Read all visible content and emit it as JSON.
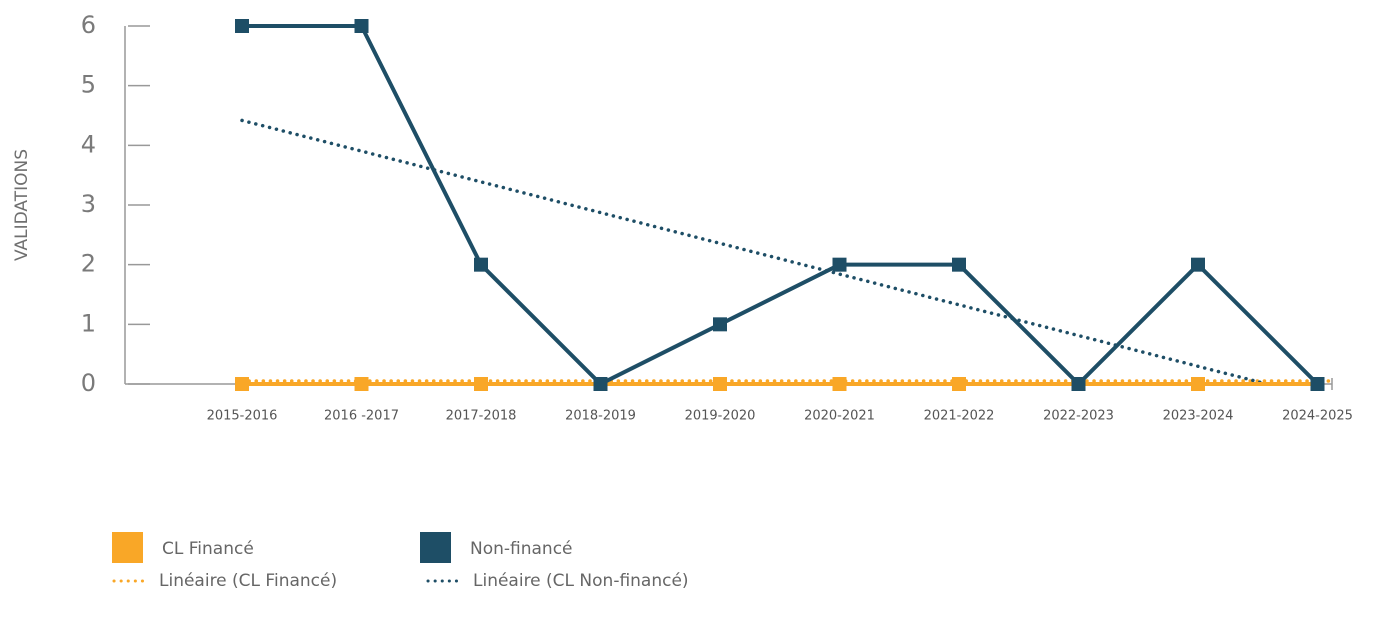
{
  "chart_data": {
    "type": "line",
    "y_label": "VALIDATIONS",
    "categories": [
      "2015-2016",
      "2016 -2017",
      "2017-2018",
      "2018-2019",
      "2019-2020",
      "2020-2021",
      "2021-2022",
      "2022-2023",
      "2023-2024",
      "2024-2025"
    ],
    "series": [
      {
        "name": "CL Financé",
        "color": "#f9a727",
        "trendline": "linear",
        "trend_name": "Linéaire (CL Financé)",
        "values": [
          0,
          0,
          0,
          0,
          0,
          0,
          0,
          0,
          0,
          0
        ]
      },
      {
        "name": "Non-financé",
        "color": "#1e4e66",
        "trendline": "linear",
        "trend_name": "Linéaire (CL Non-financé)",
        "values": [
          6,
          6,
          2,
          0,
          1,
          2,
          2,
          0,
          2,
          0
        ]
      }
    ],
    "ylim": [
      0,
      6
    ],
    "yticks": [
      0,
      1,
      2,
      3,
      4,
      5,
      6
    ],
    "grid": false,
    "legend": "bottom-left"
  }
}
